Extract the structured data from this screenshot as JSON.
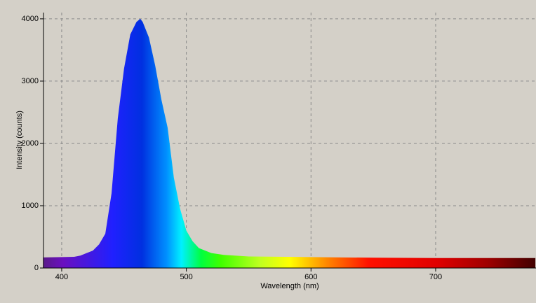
{
  "chart_data": {
    "type": "area",
    "x_label": "Wavelength (nm)",
    "y_label": "Intensity (counts)",
    "x": [
      385,
      400,
      410,
      415,
      420,
      425,
      430,
      435,
      440,
      445,
      450,
      455,
      460,
      463,
      465,
      470,
      475,
      480,
      485,
      490,
      495,
      500,
      505,
      510,
      520,
      530,
      550,
      600,
      650,
      700,
      780
    ],
    "values": [
      170,
      175,
      180,
      200,
      240,
      280,
      380,
      550,
      1200,
      2400,
      3200,
      3750,
      3950,
      4000,
      3950,
      3700,
      3250,
      2700,
      2250,
      1450,
      950,
      600,
      430,
      320,
      240,
      210,
      185,
      175,
      165,
      160,
      160
    ],
    "xlim": [
      385.4,
      780.5
    ],
    "ylim": [
      0,
      4100
    ],
    "xticks": [
      400,
      500,
      600,
      700
    ],
    "yticks": [
      0,
      1000,
      2000,
      3000,
      4000
    ],
    "grid": true
  }
}
